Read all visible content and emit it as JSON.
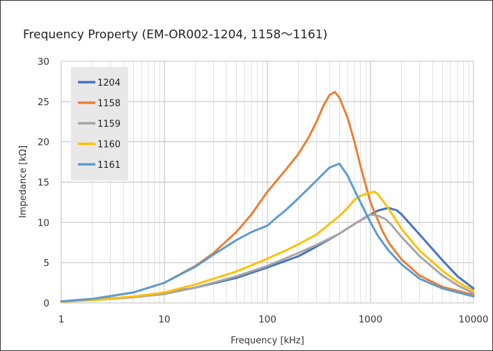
{
  "chart_data": {
    "type": "line",
    "title": "Frequency Property (EM-OR002-1204, 1158～1161)",
    "xlabel": "Frequency [kHz]",
    "ylabel": "Impedance [kΩ]",
    "xscale": "log",
    "xlim": [
      1,
      10000
    ],
    "ylim": [
      0,
      30
    ],
    "x_ticks": [
      "1",
      "10",
      "100",
      "1000",
      "10000"
    ],
    "y_ticks": [
      "0",
      "5",
      "10",
      "15",
      "20",
      "25",
      "30"
    ],
    "grid": true,
    "legend": "top-left",
    "series": [
      {
        "name": "1204",
        "color": "#4472c4",
        "points": [
          [
            1,
            0.2
          ],
          [
            2,
            0.4
          ],
          [
            5,
            0.75
          ],
          [
            10,
            1.2
          ],
          [
            20,
            1.9
          ],
          [
            50,
            3.1
          ],
          [
            100,
            4.4
          ],
          [
            200,
            5.8
          ],
          [
            300,
            7.0
          ],
          [
            500,
            8.6
          ],
          [
            700,
            9.8
          ],
          [
            1000,
            11.0
          ],
          [
            1200,
            11.5
          ],
          [
            1500,
            11.8
          ],
          [
            1800,
            11.5
          ],
          [
            2000,
            11.0
          ],
          [
            3000,
            8.5
          ],
          [
            5000,
            5.3
          ],
          [
            7000,
            3.3
          ],
          [
            10000,
            1.8
          ]
        ]
      },
      {
        "name": "1158",
        "color": "#ed7d31",
        "points": [
          [
            1,
            0.2
          ],
          [
            2,
            0.5
          ],
          [
            5,
            1.3
          ],
          [
            10,
            2.5
          ],
          [
            20,
            4.6
          ],
          [
            30,
            6.2
          ],
          [
            50,
            8.8
          ],
          [
            70,
            11.0
          ],
          [
            100,
            13.8
          ],
          [
            150,
            16.5
          ],
          [
            200,
            18.5
          ],
          [
            250,
            20.5
          ],
          [
            300,
            22.5
          ],
          [
            350,
            24.5
          ],
          [
            400,
            25.8
          ],
          [
            450,
            26.2
          ],
          [
            500,
            25.5
          ],
          [
            600,
            23.0
          ],
          [
            700,
            20.0
          ],
          [
            800,
            17.0
          ],
          [
            1000,
            12.5
          ],
          [
            1300,
            9.0
          ],
          [
            1500,
            7.5
          ],
          [
            2000,
            5.4
          ],
          [
            3000,
            3.4
          ],
          [
            5000,
            2.0
          ],
          [
            10000,
            1.0
          ]
        ]
      },
      {
        "name": "1159",
        "color": "#a5a5a5",
        "points": [
          [
            1,
            0.15
          ],
          [
            2,
            0.35
          ],
          [
            5,
            0.7
          ],
          [
            10,
            1.1
          ],
          [
            20,
            1.9
          ],
          [
            50,
            3.3
          ],
          [
            100,
            4.6
          ],
          [
            200,
            6.2
          ],
          [
            300,
            7.2
          ],
          [
            500,
            8.6
          ],
          [
            700,
            9.8
          ],
          [
            900,
            10.6
          ],
          [
            1000,
            11.0
          ],
          [
            1200,
            10.8
          ],
          [
            1400,
            10.4
          ],
          [
            1600,
            9.7
          ],
          [
            2000,
            8.2
          ],
          [
            3000,
            5.8
          ],
          [
            5000,
            3.4
          ],
          [
            7000,
            2.2
          ],
          [
            10000,
            1.2
          ]
        ]
      },
      {
        "name": "1160",
        "color": "#ffc000",
        "points": [
          [
            1,
            0.15
          ],
          [
            2,
            0.35
          ],
          [
            5,
            0.8
          ],
          [
            10,
            1.3
          ],
          [
            20,
            2.3
          ],
          [
            50,
            3.9
          ],
          [
            100,
            5.5
          ],
          [
            150,
            6.5
          ],
          [
            200,
            7.3
          ],
          [
            300,
            8.5
          ],
          [
            400,
            9.8
          ],
          [
            500,
            10.8
          ],
          [
            600,
            11.8
          ],
          [
            700,
            12.8
          ],
          [
            800,
            13.3
          ],
          [
            1000,
            13.7
          ],
          [
            1100,
            13.8
          ],
          [
            1200,
            13.4
          ],
          [
            1500,
            11.7
          ],
          [
            2000,
            9.2
          ],
          [
            3000,
            6.5
          ],
          [
            5000,
            4.0
          ],
          [
            7000,
            2.6
          ],
          [
            10000,
            1.5
          ]
        ]
      },
      {
        "name": "1161",
        "color": "#5b9bd5",
        "points": [
          [
            1,
            0.2
          ],
          [
            2,
            0.5
          ],
          [
            5,
            1.3
          ],
          [
            10,
            2.5
          ],
          [
            20,
            4.5
          ],
          [
            30,
            6.0
          ],
          [
            50,
            7.8
          ],
          [
            70,
            8.8
          ],
          [
            100,
            9.6
          ],
          [
            120,
            10.5
          ],
          [
            150,
            11.5
          ],
          [
            200,
            13.0
          ],
          [
            300,
            15.2
          ],
          [
            400,
            16.8
          ],
          [
            500,
            17.3
          ],
          [
            600,
            15.8
          ],
          [
            700,
            14.0
          ],
          [
            800,
            12.5
          ],
          [
            1000,
            10.0
          ],
          [
            1200,
            8.2
          ],
          [
            1500,
            6.5
          ],
          [
            2000,
            4.8
          ],
          [
            3000,
            3.0
          ],
          [
            5000,
            1.8
          ],
          [
            10000,
            0.8
          ]
        ]
      }
    ]
  }
}
